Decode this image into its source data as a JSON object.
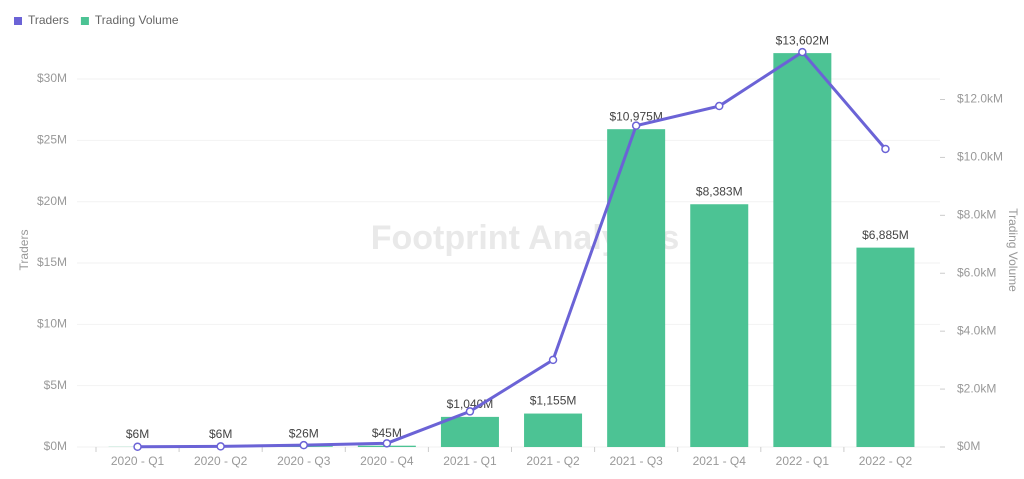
{
  "chart_data": {
    "type": "combo",
    "watermark": "Footprint Analytics",
    "y_label": "Traders",
    "y2_label": "Trading Volume",
    "categories": [
      "2020 - Q1",
      "2020 - Q2",
      "2020 - Q3",
      "2020 - Q4",
      "2021 - Q1",
      "2021 - Q2",
      "2021 - Q3",
      "2021 - Q4",
      "2022 - Q1",
      "2022 - Q2"
    ],
    "series": [
      {
        "name": "Traders",
        "type": "line",
        "color": "#6b63d6",
        "values": [
          0.02,
          0.05,
          0.15,
          0.3,
          2.9,
          7.1,
          26.2,
          27.8,
          32.2,
          24.3
        ]
      },
      {
        "name": "Trading Volume",
        "type": "bar",
        "axis": "y2",
        "color": "#4cc394",
        "values": [
          6,
          6,
          26,
          45,
          1040,
          1155,
          10975,
          8383,
          13602,
          6885
        ],
        "value_labels": [
          "$6M",
          "$6M",
          "$26M",
          "$45M",
          "$1,040M",
          "$1,155M",
          "$10,975M",
          "$8,383M",
          "$13,602M",
          "$6,885M"
        ]
      }
    ],
    "ylim": [
      0,
      34
    ],
    "yticks": [
      {
        "value": 0,
        "label": "$0M"
      },
      {
        "value": 5,
        "label": "$5M"
      },
      {
        "value": 10,
        "label": "$10M"
      },
      {
        "value": 15,
        "label": "$15M"
      },
      {
        "value": 20,
        "label": "$20M"
      },
      {
        "value": 25,
        "label": "$25M"
      },
      {
        "value": 30,
        "label": "$30M"
      }
    ],
    "y2lim": [
      0,
      14400
    ],
    "y2ticks": [
      {
        "value": 0,
        "label": "$0M"
      },
      {
        "value": 2000,
        "label": "$2.0kM"
      },
      {
        "value": 4000,
        "label": "$4.0kM"
      },
      {
        "value": 6000,
        "label": "$6.0kM"
      },
      {
        "value": 8000,
        "label": "$8.0kM"
      },
      {
        "value": 10000,
        "label": "$10.0kM"
      },
      {
        "value": 12000,
        "label": "$12.0kM"
      }
    ],
    "grid": true,
    "legend": "top-left"
  }
}
